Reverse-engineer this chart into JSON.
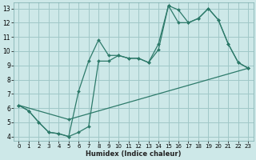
{
  "xlabel": "Humidex (Indice chaleur)",
  "bg_color": "#cde8e8",
  "grid_color": "#a0c8c8",
  "line_color": "#2d7a6a",
  "xlim": [
    -0.5,
    23.5
  ],
  "ylim": [
    3.7,
    13.4
  ],
  "xticks": [
    0,
    1,
    2,
    3,
    4,
    5,
    6,
    7,
    8,
    9,
    10,
    11,
    12,
    13,
    14,
    15,
    16,
    17,
    18,
    19,
    20,
    21,
    22,
    23
  ],
  "yticks": [
    4,
    5,
    6,
    7,
    8,
    9,
    10,
    11,
    12,
    13
  ],
  "series1_x": [
    0,
    1,
    2,
    3,
    4,
    5,
    6,
    7,
    8,
    9,
    10,
    11,
    12,
    13,
    14,
    15,
    16,
    17,
    18,
    19,
    20,
    21,
    22,
    23
  ],
  "series1_y": [
    6.2,
    5.8,
    5.0,
    4.3,
    4.2,
    4.0,
    4.3,
    4.7,
    9.3,
    9.3,
    9.7,
    9.5,
    9.5,
    9.2,
    10.5,
    13.2,
    12.9,
    12.0,
    12.3,
    13.0,
    12.2,
    10.5,
    9.2,
    8.8
  ],
  "series2_x": [
    0,
    1,
    2,
    3,
    4,
    5,
    6,
    7,
    8,
    9,
    10,
    11,
    12,
    13,
    14,
    15,
    16,
    17,
    18,
    19,
    20,
    21,
    22,
    23
  ],
  "series2_y": [
    6.2,
    5.8,
    5.0,
    4.3,
    4.2,
    4.0,
    7.2,
    9.3,
    10.8,
    9.7,
    9.7,
    9.5,
    9.5,
    9.2,
    10.1,
    13.2,
    12.0,
    12.0,
    12.3,
    13.0,
    12.2,
    10.5,
    9.2,
    8.8
  ],
  "series3_x": [
    0,
    5,
    23
  ],
  "series3_y": [
    6.2,
    5.2,
    8.8
  ]
}
